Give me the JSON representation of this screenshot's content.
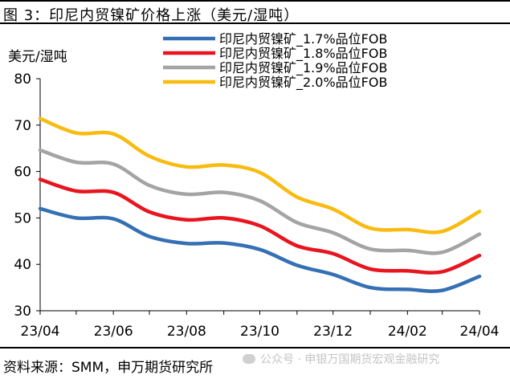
{
  "figure": {
    "title": "图 3：印尼内贸镍矿价格上涨（美元/湿吨）",
    "source": "资料来源：SMM，申万期货研究所",
    "watermark": "公众号 · 申银万国期货宏观金融研究"
  },
  "chart_data": {
    "type": "line",
    "ylabel": "美元/湿吨",
    "ylim": [
      30,
      80
    ],
    "y_ticks": [
      30,
      40,
      50,
      60,
      70,
      80
    ],
    "x_ticks": [
      "23/04",
      "23/06",
      "23/08",
      "23/10",
      "23/12",
      "24/02",
      "24/04"
    ],
    "x_range": [
      "2023-04-01",
      "2024-04-01"
    ],
    "grid": false,
    "legend_position": "top",
    "x": [
      "2023-04-01",
      "2023-05-01",
      "2023-06-01",
      "2023-07-01",
      "2023-08-01",
      "2023-09-01",
      "2023-10-01",
      "2023-11-01",
      "2023-12-01",
      "2024-01-01",
      "2024-02-01",
      "2024-03-01",
      "2024-04-01"
    ],
    "series": [
      {
        "name": "印尼内贸镍矿_1.7%品位FOB",
        "color": "#3570b4",
        "values": [
          52.0,
          50.0,
          49.8,
          46.0,
          44.5,
          44.6,
          43.2,
          39.8,
          37.8,
          35.0,
          34.6,
          34.4,
          37.4
        ]
      },
      {
        "name": "印尼内贸镍矿_1.8%品位FOB",
        "color": "#e8141e",
        "values": [
          58.3,
          55.8,
          55.5,
          51.3,
          49.6,
          50.0,
          48.3,
          44.0,
          42.3,
          39.0,
          38.6,
          38.4,
          41.9
        ]
      },
      {
        "name": "印尼内贸镍矿_1.9%品位FOB",
        "color": "#a4a4a4",
        "values": [
          64.6,
          62.0,
          61.6,
          57.0,
          55.1,
          55.5,
          53.7,
          49.0,
          46.8,
          43.3,
          43.0,
          42.6,
          46.5
        ]
      },
      {
        "name": "印尼内贸镍矿_2.0%品位FOB",
        "color": "#f8bb10",
        "values": [
          71.4,
          68.3,
          68.1,
          63.3,
          61.0,
          61.4,
          59.8,
          54.5,
          51.9,
          47.8,
          47.5,
          47.1,
          51.4
        ]
      }
    ]
  }
}
